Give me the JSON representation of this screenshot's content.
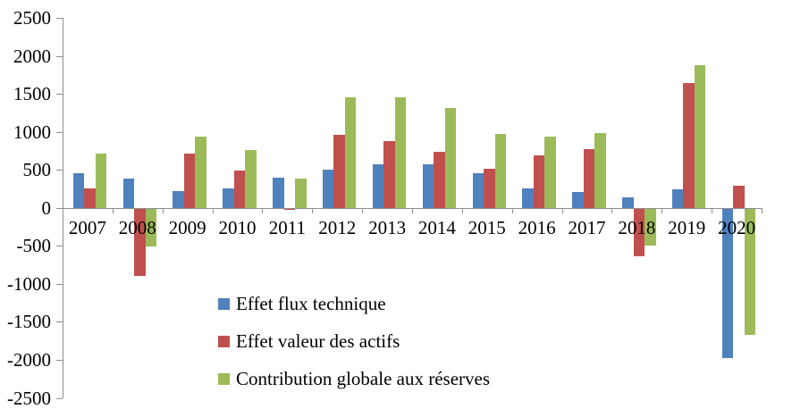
{
  "chart_data": {
    "type": "bar",
    "title": "",
    "xlabel": "",
    "ylabel": "",
    "categories": [
      "2007",
      "2008",
      "2009",
      "2010",
      "2011",
      "2012",
      "2013",
      "2014",
      "2015",
      "2016",
      "2017",
      "2018",
      "2019",
      "2020"
    ],
    "series": [
      {
        "name": "Effet flux technique",
        "color": "#4F81BD",
        "values": [
          460,
          390,
          225,
          260,
          395,
          500,
          575,
          575,
          455,
          250,
          210,
          140,
          240,
          -1960
        ]
      },
      {
        "name": "Effet valeur des actifs",
        "color": "#C0504D",
        "values": [
          250,
          -890,
          710,
          495,
          -15,
          955,
          875,
          735,
          510,
          690,
          770,
          -625,
          1640,
          290
        ]
      },
      {
        "name": "Contribution globale aux réserves",
        "color": "#9BBB59",
        "values": [
          710,
          -500,
          935,
          755,
          385,
          1455,
          1455,
          1315,
          970,
          940,
          980,
          -485,
          1880,
          -1665
        ]
      }
    ],
    "ylim": [
      -2500,
      2500
    ],
    "y_tick_step": 500,
    "y_tick_labels": [
      "2500",
      "2000",
      "1500",
      "1000",
      "500",
      "0",
      "-500",
      "-1000",
      "-1500",
      "-2000",
      "-2500"
    ],
    "grid": false,
    "legend_position": "inside-bottom-left",
    "axis_color": "#8e8e8e",
    "text_color": "#000000",
    "background_color": "#ffffff"
  }
}
